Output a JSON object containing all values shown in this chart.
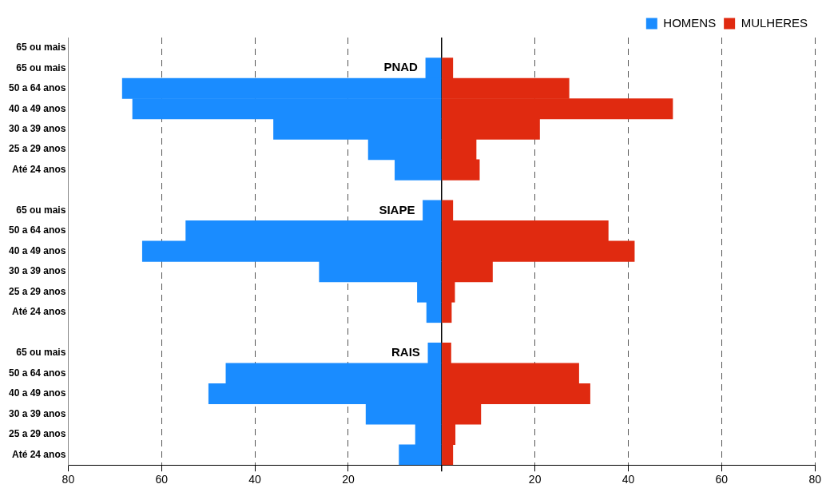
{
  "chart_data": {
    "type": "bar",
    "orientation": "horizontal",
    "stacked": true,
    "categories": [
      "65 ou mais",
      "65 ou mais",
      "50 a 64 anos",
      "40 a 49 anos",
      "30 a 39 anos",
      "25 a 29 anos",
      "Até 24 anos",
      null,
      "65 ou mais",
      "50 a 64 anos",
      "40 a 49 anos",
      "30 a 39 anos",
      "25 a 29 anos",
      "Até 24 anos",
      null,
      "65 ou mais",
      "50 a 64 anos",
      "40 a 49 anos",
      "30 a 39 anos",
      "25 a 29 anos",
      "Até 24 anos"
    ],
    "series": [
      {
        "name": "HOMENS",
        "color": "#1a8cff",
        "values": [
          null,
          -3.4,
          -68.4,
          -66.2,
          -36.0,
          -15.7,
          -10.0,
          null,
          -4.0,
          -54.8,
          -64.1,
          -26.2,
          -5.2,
          -3.2,
          null,
          -2.9,
          -46.2,
          -49.9,
          -16.2,
          -5.6,
          -9.1
        ]
      },
      {
        "name": "MULHERES",
        "color": "#e02a10",
        "values": [
          null,
          2.4,
          27.3,
          49.5,
          21.0,
          7.4,
          8.1,
          null,
          2.4,
          35.7,
          41.3,
          10.9,
          2.8,
          2.1,
          null,
          2.0,
          29.4,
          31.8,
          8.4,
          2.9,
          2.4
        ]
      }
    ],
    "xlim": [
      -80,
      80
    ],
    "xticks": [
      {
        "value": -80,
        "label": "80"
      },
      {
        "value": -60,
        "label": "60"
      },
      {
        "value": -40,
        "label": "40"
      },
      {
        "value": -20,
        "label": "20"
      },
      {
        "value": 0,
        "label": null
      },
      20,
      40,
      60,
      80
    ],
    "annotations": [
      "PNAD",
      "SIAPE",
      "RAIS"
    ],
    "grid": "x",
    "legend": "top right"
  }
}
